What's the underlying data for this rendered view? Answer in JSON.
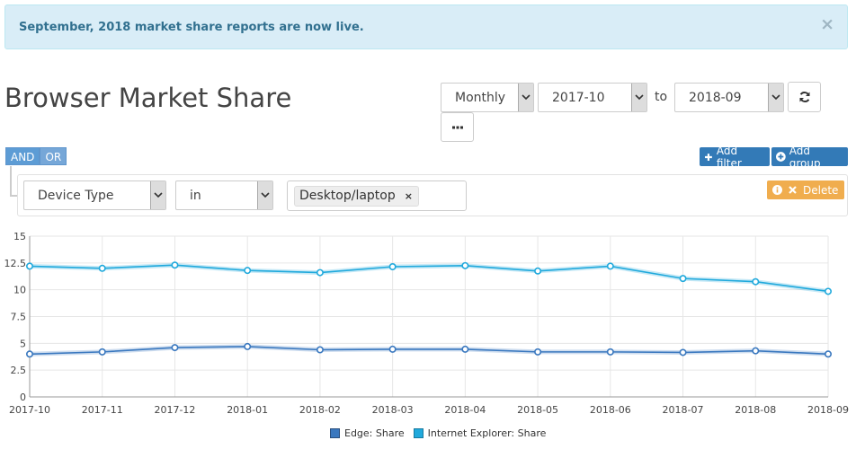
{
  "alert": {
    "message": "September, 2018 market share reports are now live.",
    "close": "×"
  },
  "title": "Browser Market Share",
  "controls": {
    "period": "Monthly",
    "from": "2017-10",
    "to_label": "to",
    "to": "2018-09"
  },
  "filters": {
    "and_label": "AND",
    "or_label": "OR",
    "add_filter": "Add filter",
    "add_group": "Add group",
    "delete": "Delete",
    "field": "Device Type",
    "operator": "in",
    "value_tag": "Desktop/laptop",
    "tag_remove": "×"
  },
  "colors": {
    "edge": "#3a78bf",
    "ie": "#20a9dc",
    "blue_btn": "#337ab7",
    "orange_btn": "#f0ad4e"
  },
  "icons": {
    "refresh": "refresh-icon",
    "more": "ellipsis-icon",
    "plus": "plus-icon",
    "add_group": "plus-circle-icon",
    "info": "info-icon",
    "close": "close-icon"
  },
  "chart_data": {
    "type": "line",
    "categories": [
      "2017-10",
      "2017-11",
      "2017-12",
      "2018-01",
      "2018-02",
      "2018-03",
      "2018-04",
      "2018-05",
      "2018-06",
      "2018-07",
      "2018-08",
      "2018-09"
    ],
    "series": [
      {
        "name": "Edge: Share",
        "values": [
          4.0,
          4.2,
          4.6,
          4.7,
          4.4,
          4.45,
          4.45,
          4.2,
          4.2,
          4.15,
          4.3,
          4.0
        ]
      },
      {
        "name": "Internet Explorer: Share",
        "values": [
          12.2,
          12.0,
          12.3,
          11.8,
          11.6,
          12.15,
          12.25,
          11.75,
          12.2,
          11.05,
          10.75,
          9.85
        ]
      }
    ],
    "yticks": [
      0,
      2.5,
      5,
      7.5,
      10,
      12.5,
      15
    ],
    "ytick_labels": [
      "0",
      "2.5",
      "5",
      "7.5",
      "10",
      "12.5",
      "15"
    ],
    "ylim": [
      0,
      15
    ],
    "grid": true,
    "legend": "bottom-center"
  }
}
